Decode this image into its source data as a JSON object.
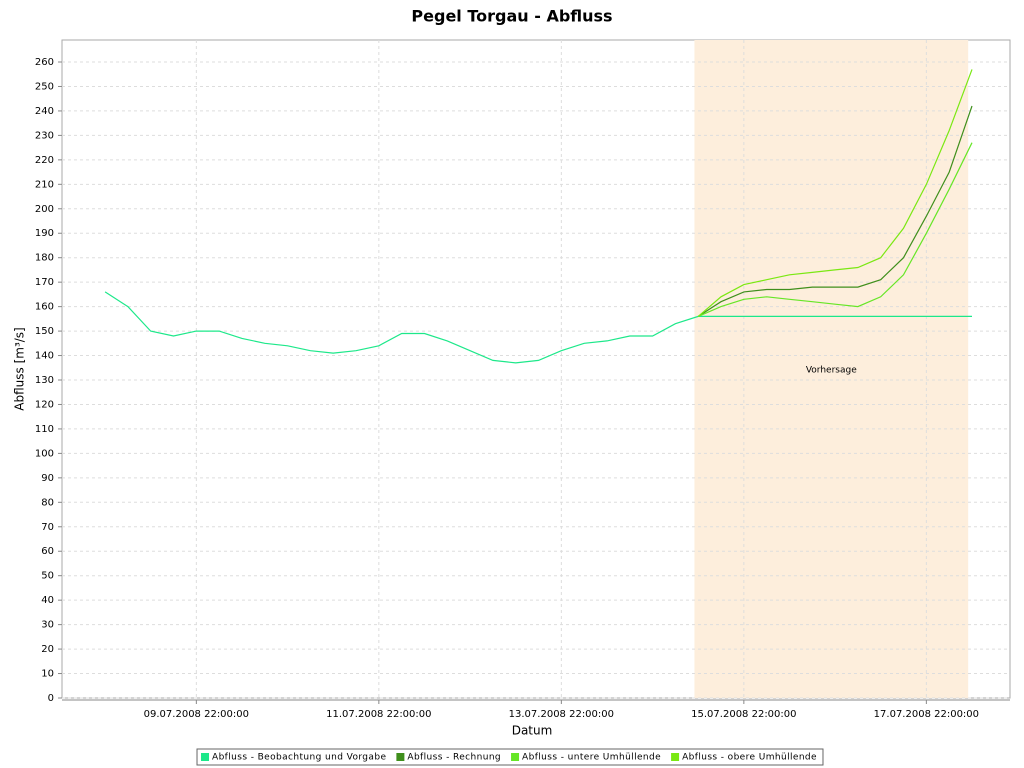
{
  "chart_data": {
    "type": "line",
    "title": "Pegel Torgau - Abfluss",
    "x_label": "Datum",
    "y_label": "Abfluss [m³/s]",
    "x": [
      "08.07.2008 22:00:00",
      "09.07.2008 04:00:00",
      "09.07.2008 10:00:00",
      "09.07.2008 16:00:00",
      "09.07.2008 22:00:00",
      "10.07.2008 04:00:00",
      "10.07.2008 10:00:00",
      "10.07.2008 16:00:00",
      "10.07.2008 22:00:00",
      "11.07.2008 04:00:00",
      "11.07.2008 10:00:00",
      "11.07.2008 16:00:00",
      "11.07.2008 22:00:00",
      "12.07.2008 04:00:00",
      "12.07.2008 10:00:00",
      "12.07.2008 16:00:00",
      "12.07.2008 22:00:00",
      "13.07.2008 04:00:00",
      "13.07.2008 10:00:00",
      "13.07.2008 16:00:00",
      "13.07.2008 22:00:00",
      "14.07.2008 04:00:00",
      "14.07.2008 10:00:00",
      "14.07.2008 16:00:00",
      "14.07.2008 22:00:00",
      "15.07.2008 04:00:00",
      "15.07.2008 10:00:00",
      "15.07.2008 16:00:00",
      "15.07.2008 22:00:00",
      "16.07.2008 04:00:00",
      "16.07.2008 10:00:00",
      "16.07.2008 16:00:00",
      "16.07.2008 22:00:00",
      "17.07.2008 04:00:00",
      "17.07.2008 10:00:00",
      "17.07.2008 16:00:00",
      "17.07.2008 22:00:00",
      "18.07.2008 04:00:00",
      "18.07.2008 10:00:00"
    ],
    "series": [
      {
        "name": "Abfluss - Beobachtung und Vorgabe",
        "color": "#1de88a",
        "values": [
          166,
          160,
          150,
          148,
          150,
          150,
          147,
          145,
          144,
          142,
          141,
          142,
          144,
          149,
          149,
          146,
          142,
          138,
          137,
          138,
          142,
          145,
          146,
          148,
          148,
          153,
          156,
          156,
          156,
          156,
          156,
          156,
          156,
          156,
          156,
          156,
          156,
          156,
          156
        ]
      },
      {
        "name": "Abfluss - Rechnung",
        "color": "#3f8f1c",
        "values": [
          null,
          null,
          null,
          null,
          null,
          null,
          null,
          null,
          null,
          null,
          null,
          null,
          null,
          null,
          null,
          null,
          null,
          null,
          null,
          null,
          null,
          null,
          null,
          null,
          null,
          null,
          156,
          162,
          166,
          167,
          167,
          168,
          168,
          168,
          171,
          180,
          197,
          215,
          242
        ]
      },
      {
        "name": "Abfluss - untere Umhüllende",
        "color": "#66e626",
        "values": [
          null,
          null,
          null,
          null,
          null,
          null,
          null,
          null,
          null,
          null,
          null,
          null,
          null,
          null,
          null,
          null,
          null,
          null,
          null,
          null,
          null,
          null,
          null,
          null,
          null,
          null,
          156,
          160,
          163,
          164,
          163,
          162,
          161,
          160,
          164,
          173,
          190,
          208,
          227
        ]
      },
      {
        "name": "Abfluss - obere Umhüllende",
        "color": "#7ae812",
        "values": [
          null,
          null,
          null,
          null,
          null,
          null,
          null,
          null,
          null,
          null,
          null,
          null,
          null,
          null,
          null,
          null,
          null,
          null,
          null,
          null,
          null,
          null,
          null,
          null,
          null,
          null,
          156,
          164,
          169,
          171,
          173,
          174,
          175,
          176,
          180,
          192,
          210,
          232,
          257
        ]
      }
    ],
    "forecast_band": {
      "label": "Vorhersage",
      "start": "15.07.2008 09:00:00",
      "end": "18.07.2008 09:00:00",
      "color": "#fdeedc"
    },
    "xlim": [
      "08.07.2008 10:40:00",
      "18.07.2008 20:00:00"
    ],
    "xticks": [
      "09.07.2008 22:00:00",
      "11.07.2008 22:00:00",
      "13.07.2008 22:00:00",
      "15.07.2008 22:00:00",
      "17.07.2008 22:00:00"
    ],
    "ylim": [
      0,
      269
    ],
    "yticks": [
      0,
      10,
      20,
      30,
      40,
      50,
      60,
      70,
      80,
      90,
      100,
      110,
      120,
      130,
      140,
      150,
      160,
      170,
      180,
      190,
      200,
      210,
      220,
      230,
      240,
      250,
      260
    ],
    "grid": true,
    "legend": "bottom"
  }
}
